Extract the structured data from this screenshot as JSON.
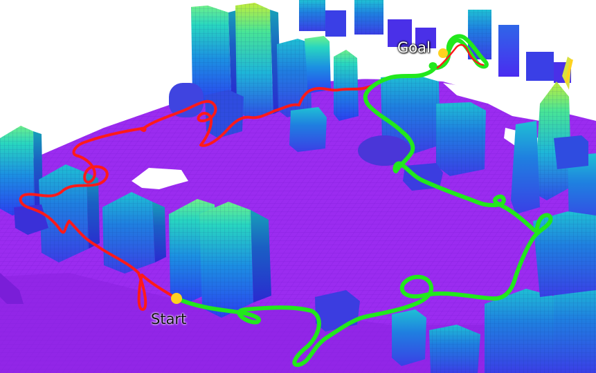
{
  "labels": {
    "start": "Start",
    "goal": "Goal"
  },
  "colors": {
    "background": "#ffffff",
    "ground": "#9b2cf0",
    "path_red": "#ff1a1a",
    "path_green": "#22e81c",
    "marker": "#ffd21f",
    "building_low": "#3355e8",
    "building_mid": "#1aa7e0",
    "building_high": "#2ee8b0",
    "building_top": "#b8f03a"
  },
  "icons": {
    "start_marker": "yellow-dot",
    "goal_marker": "yellow-dot"
  }
}
